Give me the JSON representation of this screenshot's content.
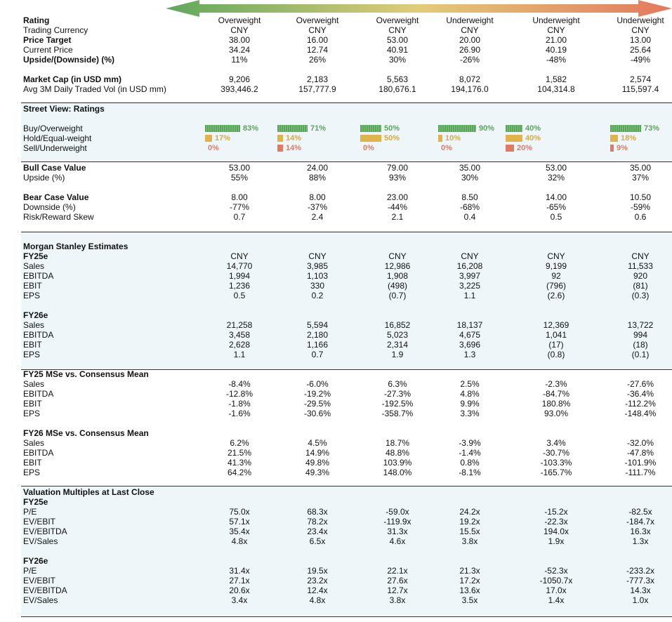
{
  "colors": {
    "green": "#5aa55a",
    "yellow": "#e0b34b",
    "red": "#e07b63",
    "shade": "#eef6f9"
  },
  "top": [
    {
      "label": "Rating",
      "bold": true,
      "values": [
        "Overweight",
        "Overweight",
        "Overweight",
        "Underweight",
        "Underweight",
        "Underweight"
      ]
    },
    {
      "label": "Trading Currency",
      "bold": false,
      "values": [
        "CNY",
        "CNY",
        "CNY",
        "CNY",
        "CNY",
        "CNY"
      ]
    },
    {
      "label": "Price Target",
      "bold": true,
      "values": [
        "38.00",
        "16.00",
        "53.00",
        "20.00",
        "21.00",
        "13.00"
      ]
    },
    {
      "label": "Current Price",
      "bold": false,
      "values": [
        "34.24",
        "12.74",
        "40.91",
        "26.90",
        "40.19",
        "25.64"
      ]
    },
    {
      "label": "Upside/(Downside) (%)",
      "bold": true,
      "values": [
        "11%",
        "26%",
        "30%",
        "-26%",
        "-48%",
        "-49%"
      ]
    }
  ],
  "market": [
    {
      "label": "Market Cap (in USD mm)",
      "bold": true,
      "values": [
        "9,206",
        "2,183",
        "5,563",
        "8,072",
        "1,582",
        "2,574"
      ]
    },
    {
      "label": "Avg 3M Daily Traded Vol (in USD mm)",
      "bold": false,
      "values": [
        "393,446.2",
        "157,777.9",
        "180,676.1",
        "194,176.0",
        "104,314.8",
        "115,597.4"
      ]
    }
  ],
  "street": {
    "title": "Street View: Ratings",
    "labels": [
      "Buy/Overweight",
      "Hold/Equal-weight",
      "Sell/Underweight"
    ],
    "buy": [
      83,
      71,
      50,
      90,
      40,
      73
    ],
    "hold": [
      17,
      14,
      50,
      10,
      40,
      18
    ],
    "sell": [
      0,
      14,
      0,
      0,
      20,
      9
    ],
    "buy_text": [
      "83%",
      "71%",
      "50%",
      "90%",
      "40%",
      "73%"
    ],
    "hold_text": [
      "17%",
      "14%",
      "50%",
      "10%",
      "40%",
      "18%"
    ],
    "sell_text": [
      "0%",
      "14%",
      "0%",
      "0%",
      "20%",
      "9%"
    ]
  },
  "bullbear": [
    {
      "label": "Bull Case Value",
      "bold": true,
      "values": [
        "53.00",
        "24.00",
        "79.00",
        "35.00",
        "53.00",
        "35.00"
      ]
    },
    {
      "label": "Upside (%)",
      "bold": false,
      "values": [
        "55%",
        "88%",
        "93%",
        "30%",
        "32%",
        "37%"
      ]
    },
    {
      "label": "",
      "bold": false,
      "values": [
        "",
        "",
        "",
        "",
        "",
        ""
      ]
    },
    {
      "label": "Bear Case Value",
      "bold": true,
      "values": [
        "8.00",
        "8.00",
        "23.00",
        "8.50",
        "14.00",
        "10.50"
      ]
    },
    {
      "label": "Downside (%)",
      "bold": false,
      "values": [
        "-77%",
        "-37%",
        "-44%",
        "-68%",
        "-65%",
        "-59%"
      ]
    },
    {
      "label": "Risk/Reward Skew",
      "bold": false,
      "values": [
        "0.7",
        "2.4",
        "2.1",
        "0.4",
        "0.5",
        "0.6"
      ]
    }
  ],
  "estimates": [
    {
      "label": "Morgan Stanley Estimates",
      "bold": true,
      "values": [
        "",
        "",
        "",
        "",
        "",
        ""
      ]
    },
    {
      "label": "FY25e",
      "bold": true,
      "values": [
        "CNY",
        "CNY",
        "CNY",
        "CNY",
        "CNY",
        "CNY"
      ]
    },
    {
      "label": "Sales",
      "bold": false,
      "values": [
        "14,770",
        "3,985",
        "12,986",
        "16,208",
        "9,199",
        "11,533"
      ]
    },
    {
      "label": "EBITDA",
      "bold": false,
      "values": [
        "1,994",
        "1,103",
        "1,908",
        "3,997",
        "92",
        "920"
      ]
    },
    {
      "label": "EBIT",
      "bold": false,
      "values": [
        "1,236",
        "330",
        "(498)",
        "3,225",
        "(796)",
        "(81)"
      ]
    },
    {
      "label": "EPS",
      "bold": false,
      "values": [
        "0.5",
        "0.2",
        "(0.7)",
        "1.1",
        "(2.6)",
        "(0.3)"
      ]
    },
    {
      "label": "",
      "bold": false,
      "values": [
        "",
        "",
        "",
        "",
        "",
        ""
      ]
    },
    {
      "label": "FY26e",
      "bold": true,
      "values": [
        "",
        "",
        "",
        "",
        "",
        ""
      ]
    },
    {
      "label": "Sales",
      "bold": false,
      "values": [
        "21,258",
        "5,594",
        "16,852",
        "18,137",
        "12,369",
        "13,722"
      ]
    },
    {
      "label": "EBITDA",
      "bold": false,
      "values": [
        "3,458",
        "2,180",
        "5,023",
        "4,675",
        "1,041",
        "994"
      ]
    },
    {
      "label": "EBIT",
      "bold": false,
      "values": [
        "2,628",
        "1,166",
        "2,314",
        "3,696",
        "(17)",
        "(18)"
      ]
    },
    {
      "label": "EPS",
      "bold": false,
      "values": [
        "1.1",
        "0.7",
        "1.9",
        "1.3",
        "(0.8)",
        "(0.1)"
      ]
    }
  ],
  "consensus": [
    {
      "label": "FY25 MSe vs. Consensus Mean",
      "bold": true,
      "values": [
        "",
        "",
        "",
        "",
        "",
        ""
      ]
    },
    {
      "label": "Sales",
      "bold": false,
      "values": [
        "-8.4%",
        "-6.0%",
        "6.3%",
        "2.5%",
        "-2.3%",
        "-27.6%"
      ]
    },
    {
      "label": "EBITDA",
      "bold": false,
      "values": [
        "-12.8%",
        "-19.2%",
        "-27.3%",
        "4.8%",
        "-84.7%",
        "-36.4%"
      ]
    },
    {
      "label": "EBIT",
      "bold": false,
      "values": [
        "-1.8%",
        "-29.5%",
        "-192.5%",
        "9.9%",
        "180.8%",
        "-112.2%"
      ]
    },
    {
      "label": "EPS",
      "bold": false,
      "values": [
        "-1.6%",
        "-30.6%",
        "-358.7%",
        "3.3%",
        "93.0%",
        "-148.4%"
      ]
    },
    {
      "label": "",
      "bold": false,
      "values": [
        "",
        "",
        "",
        "",
        "",
        ""
      ]
    },
    {
      "label": "FY26 MSe vs. Consensus Mean",
      "bold": true,
      "values": [
        "",
        "",
        "",
        "",
        "",
        ""
      ]
    },
    {
      "label": "Sales",
      "bold": false,
      "values": [
        "6.2%",
        "4.5%",
        "18.7%",
        "-3.9%",
        "3.4%",
        "-32.0%"
      ]
    },
    {
      "label": "EBITDA",
      "bold": false,
      "values": [
        "21.5%",
        "14.9%",
        "48.8%",
        "-1.4%",
        "-30.7%",
        "-47.8%"
      ]
    },
    {
      "label": "EBIT",
      "bold": false,
      "values": [
        "41.3%",
        "49.8%",
        "103.9%",
        "0.8%",
        "-103.3%",
        "-101.9%"
      ]
    },
    {
      "label": "EPS",
      "bold": false,
      "values": [
        "64.2%",
        "49.3%",
        "148.0%",
        "-8.1%",
        "-165.7%",
        "-111.7%"
      ]
    }
  ],
  "valuation": [
    {
      "label": "Valuation Multiples at Last Close",
      "bold": true,
      "values": [
        "",
        "",
        "",
        "",
        "",
        ""
      ]
    },
    {
      "label": "FY25e",
      "bold": true,
      "values": [
        "",
        "",
        "",
        "",
        "",
        ""
      ]
    },
    {
      "label": "P/E",
      "bold": false,
      "values": [
        "75.0x",
        "68.3x",
        "-59.0x",
        "24.2x",
        "-15.2x",
        "-82.5x"
      ]
    },
    {
      "label": "EV/EBIT",
      "bold": false,
      "values": [
        "57.1x",
        "78.2x",
        "-119.9x",
        "19.2x",
        "-22.3x",
        "-184.7x"
      ]
    },
    {
      "label": "EV/EBITDA",
      "bold": false,
      "values": [
        "35.4x",
        "23.4x",
        "31.3x",
        "15.5x",
        "194.0x",
        "16.3x"
      ]
    },
    {
      "label": "EV/Sales",
      "bold": false,
      "values": [
        "4.8x",
        "6.5x",
        "4.6x",
        "3.8x",
        "1.9x",
        "1.3x"
      ]
    },
    {
      "label": "",
      "bold": false,
      "values": [
        "",
        "",
        "",
        "",
        "",
        ""
      ]
    },
    {
      "label": "FY26e",
      "bold": true,
      "values": [
        "",
        "",
        "",
        "",
        "",
        ""
      ]
    },
    {
      "label": "P/E",
      "bold": false,
      "values": [
        "31.4x",
        "19.5x",
        "22.1x",
        "21.3x",
        "-52.3x",
        "-233.2x"
      ]
    },
    {
      "label": "EV/EBIT",
      "bold": false,
      "values": [
        "27.1x",
        "23.2x",
        "27.6x",
        "17.2x",
        "-1050.7x",
        "-777.3x"
      ]
    },
    {
      "label": "EV/EBITDA",
      "bold": false,
      "values": [
        "20.6x",
        "12.4x",
        "12.7x",
        "13.6x",
        "17.0x",
        "14.3x"
      ]
    },
    {
      "label": "EV/Sales",
      "bold": false,
      "values": [
        "3.4x",
        "4.8x",
        "3.8x",
        "3.5x",
        "1.4x",
        "1.0x"
      ]
    }
  ]
}
